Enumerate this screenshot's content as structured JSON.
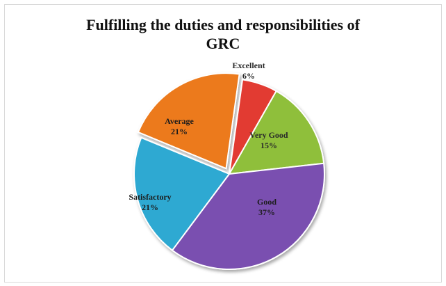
{
  "chart_data": {
    "type": "pie",
    "title_lines": [
      "Fulfilling the duties and responsibilities of",
      "GRC"
    ],
    "slices": [
      {
        "label": "Excellent",
        "value": 6,
        "display": "6%",
        "color": "#e23b32"
      },
      {
        "label": "Very Good",
        "value": 15,
        "display": "15%",
        "color": "#8fbf3a"
      },
      {
        "label": "Good",
        "value": 37,
        "display": "37%",
        "color": "#7a4fb0"
      },
      {
        "label": "Satisfactory",
        "value": 21,
        "display": "21%",
        "color": "#2ea9d2"
      },
      {
        "label": "Average",
        "value": 21,
        "display": "21%",
        "color": "#ec7a1c"
      }
    ]
  }
}
